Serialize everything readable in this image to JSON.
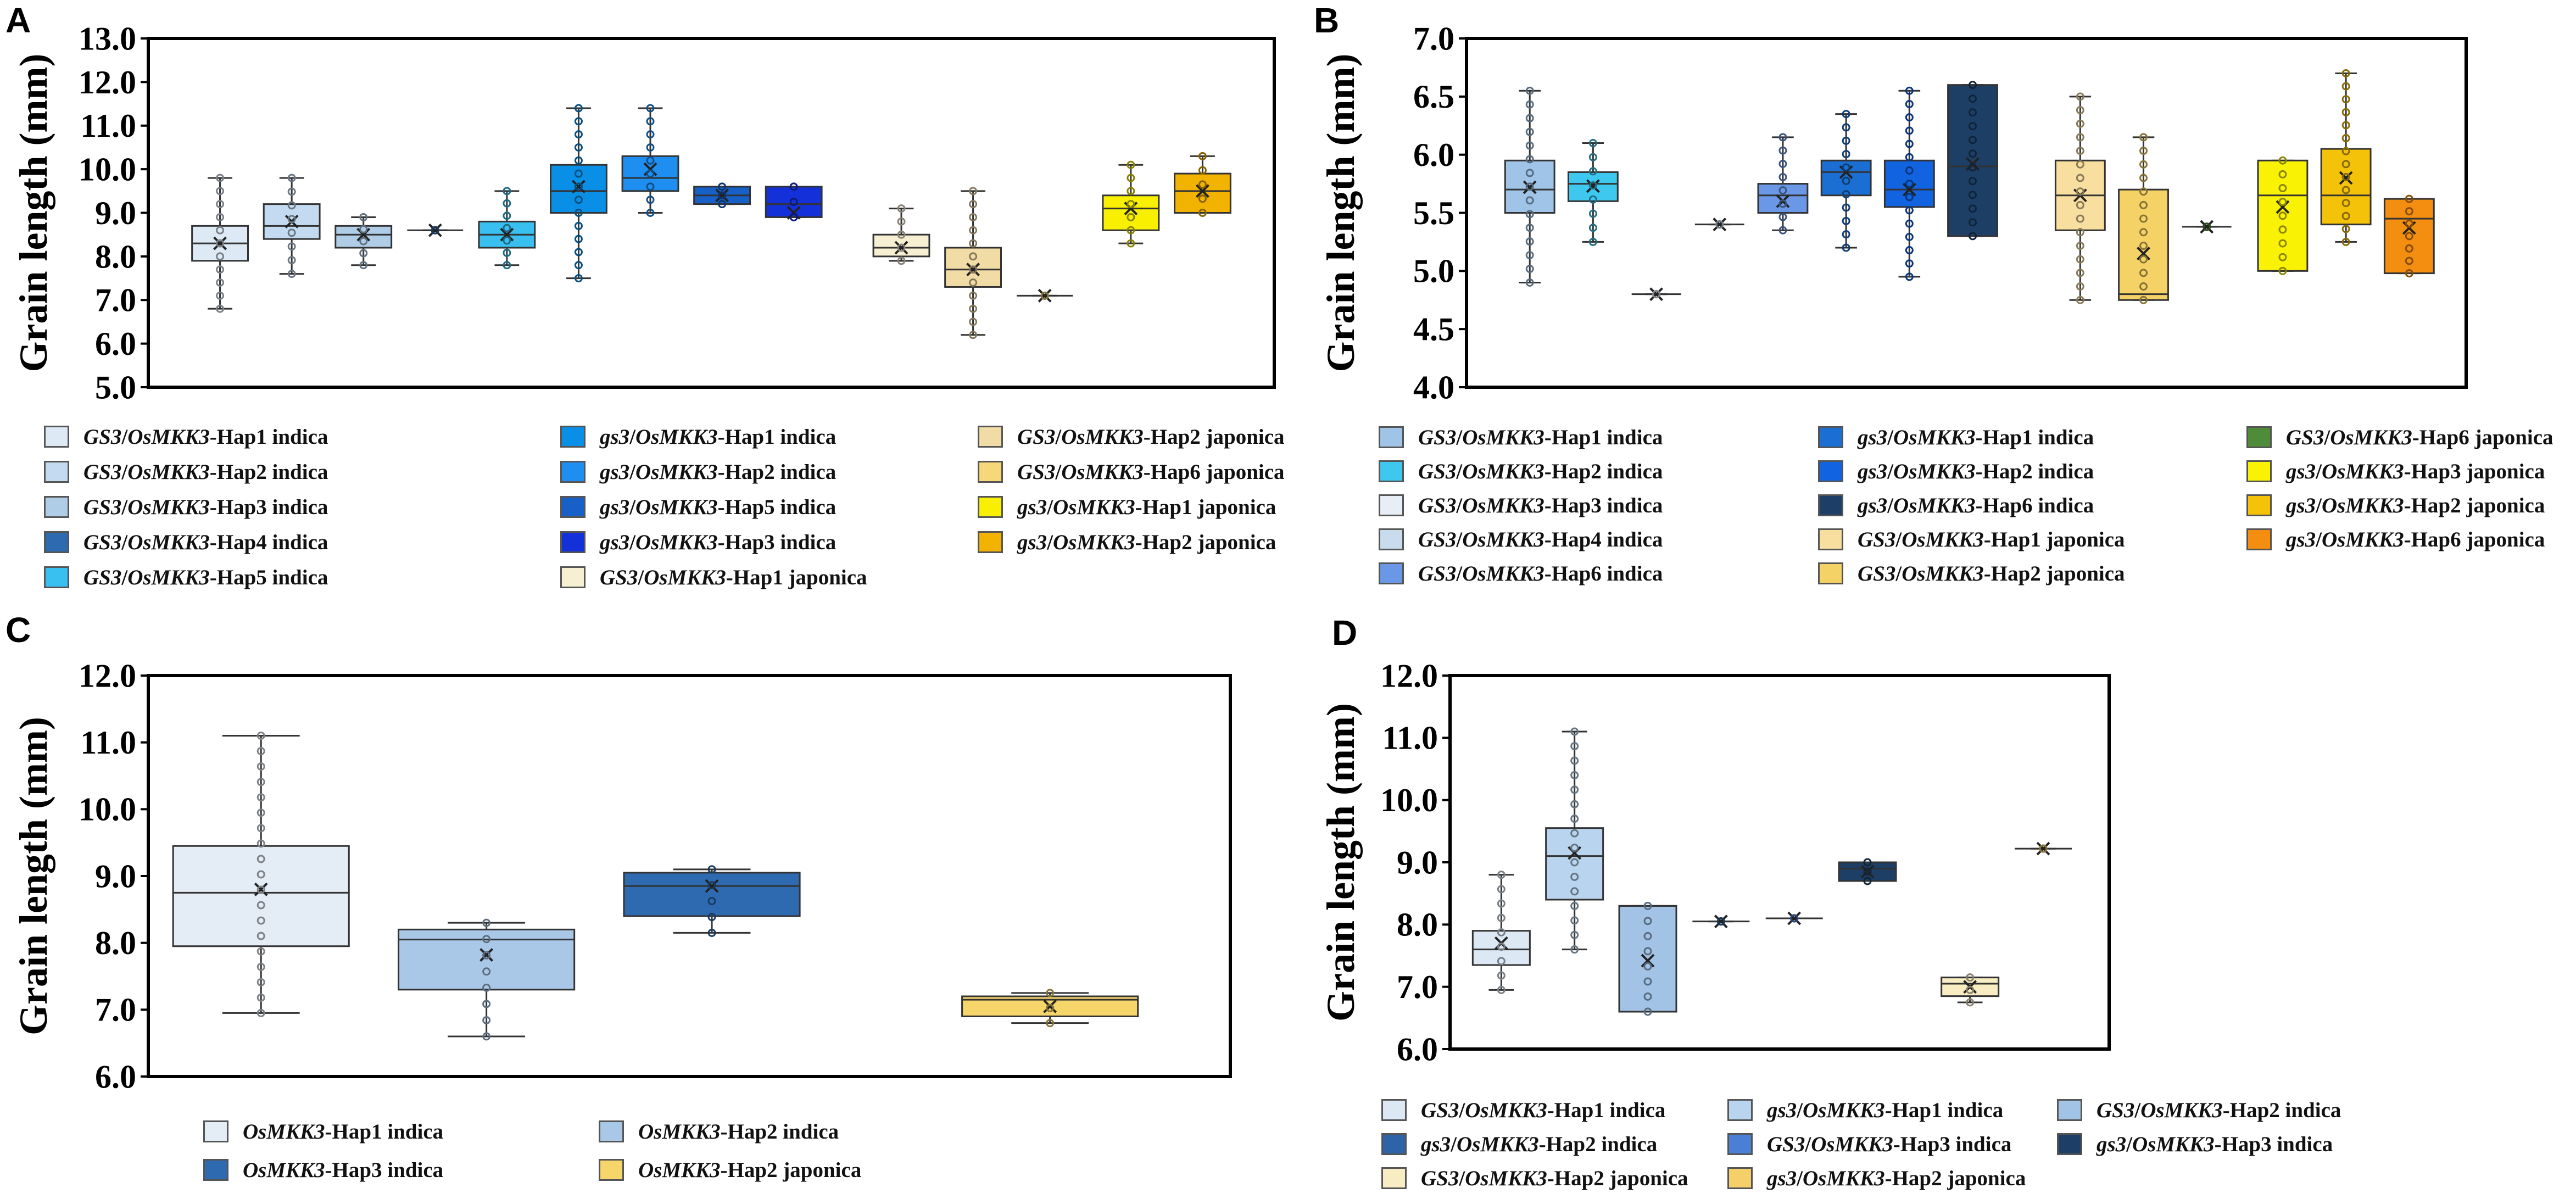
{
  "panels": [
    {
      "id": "A",
      "letter": "A",
      "chart_data": {
        "type": "box",
        "ylabel": "Grain length (mm)",
        "ylim": [
          5.0,
          13.0
        ],
        "yticks": [
          "5.0",
          "6.0",
          "7.0",
          "8.0",
          "9.0",
          "10.0",
          "11.0",
          "12.0",
          "13.0"
        ],
        "boxes": [
          {
            "label": "GS3/OsMKK3-Hap1 indica",
            "color": "#dde9f5",
            "x": 0.5,
            "min": 6.8,
            "q1": 7.9,
            "med": 8.3,
            "q3": 8.7,
            "max": 9.8,
            "mean": 8.3
          },
          {
            "label": "GS3/OsMKK3-Hap2 indica",
            "color": "#c3daf0",
            "x": 1.5,
            "min": 7.6,
            "q1": 8.4,
            "med": 8.7,
            "q3": 9.2,
            "max": 9.8,
            "mean": 8.8
          },
          {
            "label": "GS3/OsMKK3-Hap3 indica",
            "color": "#b0cde8",
            "x": 2.5,
            "min": 7.8,
            "q1": 8.2,
            "med": 8.5,
            "q3": 8.7,
            "max": 8.9,
            "mean": 8.5
          },
          {
            "label": "GS3/OsMKK3-Hap4 indica",
            "color": "#2e6ab0",
            "x": 3.5,
            "min": 8.6,
            "q1": 8.6,
            "med": 8.6,
            "q3": 8.6,
            "max": 8.6,
            "mean": 8.6
          },
          {
            "label": "GS3/OsMKK3-Hap5 indica",
            "color": "#39c0f0",
            "x": 4.5,
            "min": 7.8,
            "q1": 8.2,
            "med": 8.5,
            "q3": 8.8,
            "max": 9.5,
            "mean": 8.5
          },
          {
            "label": "gs3/OsMKK3-Hap1 indica",
            "color": "#0a8fe6",
            "x": 5.5,
            "min": 7.5,
            "q1": 9.0,
            "med": 9.5,
            "q3": 10.1,
            "max": 11.4,
            "mean": 9.6
          },
          {
            "label": "gs3/OsMKK3-Hap2 indica",
            "color": "#1e8ef0",
            "x": 6.5,
            "min": 9.0,
            "q1": 9.5,
            "med": 9.8,
            "q3": 10.3,
            "max": 11.4,
            "mean": 10.0
          },
          {
            "label": "gs3/OsMKK3-Hap5 indica",
            "color": "#1660c8",
            "x": 7.5,
            "min": 9.2,
            "q1": 9.2,
            "med": 9.4,
            "q3": 9.6,
            "max": 9.6,
            "mean": 9.4
          },
          {
            "label": "gs3/OsMKK3-Hap3 indica",
            "color": "#1430d8",
            "x": 8.5,
            "min": 8.9,
            "q1": 8.9,
            "med": 9.2,
            "q3": 9.6,
            "max": 9.6,
            "mean": 9.0
          },
          {
            "label": "GS3/OsMKK3-Hap1 japonica",
            "color": "#f7efd2",
            "x": 10.0,
            "min": 7.9,
            "q1": 8.0,
            "med": 8.2,
            "q3": 8.5,
            "max": 9.1,
            "mean": 8.2
          },
          {
            "label": "GS3/OsMKK3-Hap2 japonica",
            "color": "#f2dca6",
            "x": 11.0,
            "min": 6.2,
            "q1": 7.3,
            "med": 7.7,
            "q3": 8.2,
            "max": 9.5,
            "mean": 7.7
          },
          {
            "label": "GS3/OsMKK3-Hap6 japonica",
            "color": "#f6d779",
            "x": 12.0,
            "min": 7.1,
            "q1": 7.1,
            "med": 7.1,
            "q3": 7.1,
            "max": 7.1,
            "mean": 7.1
          },
          {
            "label": "gs3/OsMKK3-Hap1 japonica",
            "color": "#f8f000",
            "x": 13.2,
            "min": 8.3,
            "q1": 8.6,
            "med": 9.1,
            "q3": 9.4,
            "max": 10.1,
            "mean": 9.1
          },
          {
            "label": "gs3/OsMKK3-Hap2 japonica",
            "color": "#f2b200",
            "x": 14.2,
            "min": 9.0,
            "q1": 9.0,
            "med": 9.5,
            "q3": 9.9,
            "max": 10.3,
            "mean": 9.5
          }
        ],
        "xrange": [
          -0.5,
          15.2
        ]
      },
      "legend": [
        {
          "g": "GS3",
          "s": "/",
          "o": "OsMKK3",
          "rest": "-Hap1 indica",
          "color": "#dde9f5",
          "gi": true
        },
        {
          "g": "GS3",
          "s": "/",
          "o": "OsMKK3",
          "rest": "-Hap2 indica",
          "color": "#c3daf0",
          "gi": true
        },
        {
          "g": "GS3",
          "s": "/",
          "o": "OsMKK3",
          "rest": "-Hap3 indica",
          "color": "#b0cde8",
          "gi": true
        },
        {
          "g": "GS3",
          "s": "/",
          "o": "OsMKK3",
          "rest": "-Hap4 indica",
          "color": "#2e6ab0",
          "gi": true
        },
        {
          "g": "GS3",
          "s": "/",
          "o": "OsMKK3",
          "rest": "-Hap5 indica",
          "color": "#39c0f0",
          "gi": true
        },
        {
          "g": "gs3",
          "s": "/",
          "o": "OsMKK3",
          "rest": "-Hap1 indica",
          "color": "#0a8fe6",
          "gi": true
        },
        {
          "g": "gs3",
          "s": "/",
          "o": "OsMKK3",
          "rest": "-Hap2 indica",
          "color": "#1e8ef0",
          "gi": true
        },
        {
          "g": "gs3",
          "s": "/",
          "o": "OsMKK3",
          "rest": "-Hap5 indica",
          "color": "#1660c8",
          "gi": true
        },
        {
          "g": "gs3",
          "s": "/",
          "o": "OsMKK3",
          "rest": "-Hap3 indica",
          "color": "#1430d8",
          "gi": true
        },
        {
          "g": "GS3",
          "s": "/",
          "o": "OsMKK3",
          "rest": "-Hap1 japonica",
          "color": "#f7efd2",
          "gi": true
        },
        {
          "g": "GS3",
          "s": "/",
          "o": "OsMKK3",
          "rest": "-Hap2 japonica",
          "color": "#f2dca6",
          "gi": true
        },
        {
          "g": "GS3",
          "s": "/",
          "o": "OsMKK3",
          "rest": "-Hap6 japonica",
          "color": "#f6d779",
          "gi": true
        },
        {
          "g": "gs3",
          "s": "/",
          "o": "OsMKK3",
          "rest": "-Hap1 japonica",
          "color": "#f8f000",
          "gi": true
        },
        {
          "g": "gs3",
          "s": "/",
          "o": "OsMKK3",
          "rest": "-Hap2 japonica",
          "color": "#f2b200",
          "gi": true
        }
      ]
    },
    {
      "id": "B",
      "letter": "B",
      "chart_data": {
        "type": "box",
        "ylabel": "Grain length (mm)",
        "ylim": [
          4.0,
          7.0
        ],
        "yticks": [
          "4.0",
          "4.5",
          "5.0",
          "5.5",
          "6.0",
          "6.5",
          "7.0"
        ],
        "boxes": [
          {
            "label": "GS3/OsMKK3-Hap1 indica",
            "color": "#9fc4e8",
            "x": 0.5,
            "min": 4.9,
            "q1": 5.5,
            "med": 5.7,
            "q3": 5.95,
            "max": 6.55,
            "mean": 5.72
          },
          {
            "label": "GS3/OsMKK3-Hap2 indica",
            "color": "#3ec7ef",
            "x": 1.5,
            "min": 5.25,
            "q1": 5.6,
            "med": 5.75,
            "q3": 5.85,
            "max": 6.1,
            "mean": 5.73
          },
          {
            "label": "GS3/OsMKK3-Hap3 indica",
            "color": "#e8eef6",
            "x": 2.5,
            "min": 4.8,
            "q1": 4.8,
            "med": 4.8,
            "q3": 4.8,
            "max": 4.8,
            "mean": 4.8
          },
          {
            "label": "GS3/OsMKK3-Hap4 indica",
            "color": "#c9dcee",
            "x": 3.5,
            "min": 5.4,
            "q1": 5.4,
            "med": 5.4,
            "q3": 5.4,
            "max": 5.4,
            "mean": 5.4
          },
          {
            "label": "GS3/OsMKK3-Hap6 indica",
            "color": "#6b98e6",
            "x": 4.5,
            "min": 5.35,
            "q1": 5.5,
            "med": 5.65,
            "q3": 5.75,
            "max": 6.15,
            "mean": 5.6
          },
          {
            "label": "gs3/OsMKK3-Hap1 indica",
            "color": "#1b6fd2",
            "x": 5.5,
            "min": 5.2,
            "q1": 5.65,
            "med": 5.85,
            "q3": 5.95,
            "max": 6.35,
            "mean": 5.85
          },
          {
            "label": "gs3/OsMKK3-Hap2 indica",
            "color": "#1163e0",
            "x": 6.5,
            "min": 4.95,
            "q1": 5.55,
            "med": 5.7,
            "q3": 5.95,
            "max": 6.55,
            "mean": 5.7
          },
          {
            "label": "gs3/OsMKK3-Hap6 indica",
            "color": "#1d3f66",
            "x": 7.5,
            "min": 5.3,
            "q1": 5.3,
            "med": 5.9,
            "q3": 6.6,
            "max": 6.6,
            "mean": 5.92
          },
          {
            "label": "GS3/OsMKK3-Hap1 japonica",
            "color": "#f8dfa0",
            "x": 9.2,
            "min": 4.75,
            "q1": 5.35,
            "med": 5.65,
            "q3": 5.95,
            "max": 6.5,
            "mean": 5.65
          },
          {
            "label": "GS3/OsMKK3-Hap2 japonica",
            "color": "#f5d266",
            "x": 10.2,
            "min": 4.75,
            "q1": 4.75,
            "med": 4.8,
            "q3": 5.7,
            "max": 6.15,
            "mean": 5.15
          },
          {
            "label": "GS3/OsMKK3-Hap6 japonica",
            "color": "#4e8c3a",
            "x": 11.2,
            "min": 5.38,
            "q1": 5.38,
            "med": 5.38,
            "q3": 5.38,
            "max": 5.38,
            "mean": 5.38
          },
          {
            "label": "gs3/OsMKK3-Hap3 japonica",
            "color": "#faf205",
            "x": 12.4,
            "min": 5.0,
            "q1": 5.0,
            "med": 5.65,
            "q3": 5.95,
            "max": 5.95,
            "mean": 5.55
          },
          {
            "label": "gs3/OsMKK3-Hap2 japonica",
            "color": "#f5c20a",
            "x": 13.4,
            "min": 5.25,
            "q1": 5.4,
            "med": 5.65,
            "q3": 6.05,
            "max": 6.7,
            "mean": 5.8
          },
          {
            "label": "gs3/OsMKK3-Hap6 japonica",
            "color": "#f38e10",
            "x": 14.4,
            "min": 4.98,
            "q1": 4.98,
            "med": 5.45,
            "q3": 5.62,
            "max": 5.62,
            "mean": 5.37
          }
        ],
        "xrange": [
          -0.5,
          15.3
        ]
      },
      "legend": [
        {
          "g": "GS3",
          "s": "/",
          "o": "OsMKK3",
          "rest": "-Hap1 indica",
          "color": "#9fc4e8",
          "gi": true
        },
        {
          "g": "GS3",
          "s": "/",
          "o": "OsMKK3",
          "rest": "-Hap2 indica",
          "color": "#3ec7ef",
          "gi": true
        },
        {
          "g": "GS3",
          "s": "/",
          "o": "OsMKK3",
          "rest": "-Hap3 indica",
          "color": "#e8eef6",
          "gi": true
        },
        {
          "g": "GS3",
          "s": "/",
          "o": "OsMKK3",
          "rest": "-Hap4 indica",
          "color": "#c9dcee",
          "gi": true
        },
        {
          "g": "GS3",
          "s": "/",
          "o": "OsMKK3",
          "rest": "-Hap6 indica",
          "color": "#6b98e6",
          "gi": true
        },
        {
          "g": "gs3",
          "s": "/",
          "o": "OsMKK3",
          "rest": "-Hap1 indica",
          "color": "#1b6fd2",
          "gi": true
        },
        {
          "g": "gs3",
          "s": "/",
          "o": "OsMKK3",
          "rest": "-Hap2 indica",
          "color": "#1163e0",
          "gi": true
        },
        {
          "g": "gs3",
          "s": "/",
          "o": "OsMKK3",
          "rest": "-Hap6 indica",
          "color": "#1d3f66",
          "gi": true
        },
        {
          "g": "GS3",
          "s": "/",
          "o": "OsMKK3",
          "rest": "-Hap1 japonica",
          "color": "#f8dfa0",
          "gi": true
        },
        {
          "g": "GS3",
          "s": "/",
          "o": "OsMKK3",
          "rest": "-Hap2 japonica",
          "color": "#f5d266",
          "gi": true
        },
        {
          "g": "GS3",
          "s": "/",
          "o": "OsMKK3",
          "rest": "-Hap6 japonica",
          "color": "#4e8c3a",
          "gi": true
        },
        {
          "g": "gs3",
          "s": "/",
          "o": "OsMKK3",
          "rest": "-Hap3 japonica",
          "color": "#faf205",
          "gi": true
        },
        {
          "g": "gs3",
          "s": "/",
          "o": "OsMKK3",
          "rest": "-Hap2 japonica",
          "color": "#f5c20a",
          "gi": true
        },
        {
          "g": "gs3",
          "s": "/",
          "o": "OsMKK3",
          "rest": "-Hap6 japonica",
          "color": "#f38e10",
          "gi": true
        }
      ]
    },
    {
      "id": "C",
      "letter": "C",
      "chart_data": {
        "type": "box",
        "ylabel": "Grain length (mm)",
        "ylim": [
          6.0,
          12.0
        ],
        "yticks": [
          "6.0",
          "7.0",
          "8.0",
          "9.0",
          "10.0",
          "11.0",
          "12.0"
        ],
        "boxes": [
          {
            "label": "OsMKK3-Hap1 indica",
            "color": "#e4ecf5",
            "x": 0.5,
            "min": 6.95,
            "q1": 7.95,
            "med": 8.75,
            "q3": 9.45,
            "max": 11.1,
            "mean": 8.8
          },
          {
            "label": "OsMKK3-Hap2 indica",
            "color": "#a9c8e8",
            "x": 1.5,
            "min": 6.6,
            "q1": 7.3,
            "med": 8.05,
            "q3": 8.2,
            "max": 8.3,
            "mean": 7.82
          },
          {
            "label": "OsMKK3-Hap3 indica",
            "color": "#2e6ab0",
            "x": 2.5,
            "min": 8.15,
            "q1": 8.4,
            "med": 8.85,
            "q3": 9.05,
            "max": 9.1,
            "mean": 8.85
          },
          {
            "label": "OsMKK3-Hap2 japonica",
            "color": "#f6d56b",
            "x": 4.0,
            "min": 6.8,
            "q1": 6.9,
            "med": 7.15,
            "q3": 7.2,
            "max": 7.25,
            "mean": 7.05
          }
        ],
        "xrange": [
          0.0,
          4.8
        ]
      },
      "legend": [
        {
          "g": "",
          "s": "",
          "o": "OsMKK3",
          "rest": "-Hap1 indica",
          "color": "#e4ecf5",
          "gi": false
        },
        {
          "g": "",
          "s": "",
          "o": "OsMKK3",
          "rest": "-Hap2 indica",
          "color": "#a9c8e8",
          "gi": false
        },
        {
          "g": "",
          "s": "",
          "o": "OsMKK3",
          "rest": "-Hap3 indica",
          "color": "#2e6ab0",
          "gi": false
        },
        {
          "g": "",
          "s": "",
          "o": "OsMKK3",
          "rest": "-Hap2 japonica",
          "color": "#f6d56b",
          "gi": false
        }
      ]
    },
    {
      "id": "D",
      "letter": "D",
      "chart_data": {
        "type": "box",
        "ylabel": "Grain length (mm)",
        "ylim": [
          6.0,
          12.0
        ],
        "yticks": [
          "6.0",
          "7.0",
          "8.0",
          "9.0",
          "10.0",
          "11.0",
          "12.0"
        ],
        "boxes": [
          {
            "label": "GS3/OsMKK3-Hap1 indica",
            "color": "#dce8f4",
            "x": 0.5,
            "min": 6.95,
            "q1": 7.35,
            "med": 7.6,
            "q3": 7.9,
            "max": 8.8,
            "mean": 7.7
          },
          {
            "label": "gs3/OsMKK3-Hap1 indica",
            "color": "#b9d4ee",
            "x": 1.5,
            "min": 7.6,
            "q1": 8.4,
            "med": 9.1,
            "q3": 9.55,
            "max": 11.1,
            "mean": 9.15
          },
          {
            "label": "GS3/OsMKK3-Hap2 indica",
            "color": "#a2c3e6",
            "x": 2.5,
            "min": 6.6,
            "q1": 6.6,
            "med": 8.3,
            "q3": 8.3,
            "max": 8.3,
            "mean": 7.42
          },
          {
            "label": "gs3/OsMKK3-Hap2 indica",
            "color": "#2e63a8",
            "x": 3.5,
            "min": 8.05,
            "q1": 8.05,
            "med": 8.05,
            "q3": 8.05,
            "max": 8.05,
            "mean": 8.05
          },
          {
            "label": "GS3/OsMKK3-Hap3 indica",
            "color": "#4a7fd6",
            "x": 4.5,
            "min": 8.1,
            "q1": 8.1,
            "med": 8.1,
            "q3": 8.1,
            "max": 8.1,
            "mean": 8.1
          },
          {
            "label": "gs3/OsMKK3-Hap3 indica",
            "color": "#1d3f66",
            "x": 5.5,
            "min": 8.7,
            "q1": 8.7,
            "med": 8.9,
            "q3": 9.0,
            "max": 9.0,
            "mean": 8.85
          },
          {
            "label": "GS3/OsMKK3-Hap2 japonica",
            "color": "#f7ecc2",
            "x": 6.9,
            "min": 6.75,
            "q1": 6.85,
            "med": 7.05,
            "q3": 7.15,
            "max": 7.15,
            "mean": 7.0
          },
          {
            "label": "gs3/OsMKK3-Hap2 japonica",
            "color": "#f5d06a",
            "x": 7.9,
            "min": 9.22,
            "q1": 9.22,
            "med": 9.22,
            "q3": 9.22,
            "max": 9.22,
            "mean": 9.22
          }
        ],
        "xrange": [
          -0.2,
          8.8
        ]
      },
      "legend": [
        {
          "g": "GS3",
          "s": "/",
          "o": "OsMKK3",
          "rest": "-Hap1 indica",
          "color": "#dce8f4",
          "gi": true
        },
        {
          "g": "gs3",
          "s": "/",
          "o": "OsMKK3",
          "rest": "-Hap1 indica",
          "color": "#b9d4ee",
          "gi": true
        },
        {
          "g": "GS3",
          "s": "/",
          "o": "OsMKK3",
          "rest": "-Hap2 indica",
          "color": "#a2c3e6",
          "gi": true
        },
        {
          "g": "gs3",
          "s": "/",
          "o": "OsMKK3",
          "rest": "-Hap2 indica",
          "color": "#2e63a8",
          "gi": true
        },
        {
          "g": "GS3",
          "s": "/",
          "o": "OsMKK3",
          "rest": "-Hap3 indica",
          "color": "#4a7fd6",
          "gi": true
        },
        {
          "g": "gs3",
          "s": "/",
          "o": "OsMKK3",
          "rest": "-Hap3 indica",
          "color": "#1d3f66",
          "gi": true
        },
        {
          "g": "GS3",
          "s": "/",
          "o": "OsMKK3",
          "rest": "-Hap2 japonica",
          "color": "#f7ecc2",
          "gi": true
        },
        {
          "g": "gs3",
          "s": "/",
          "o": "OsMKK3",
          "rest": "-Hap2 japonica",
          "color": "#f5d06a",
          "gi": true
        }
      ]
    }
  ]
}
